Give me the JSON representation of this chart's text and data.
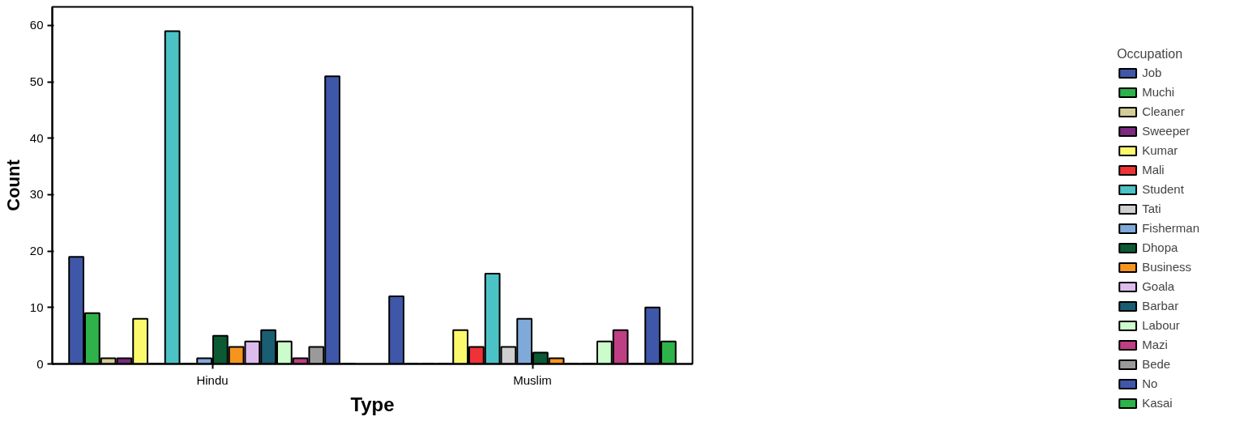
{
  "chart_data": {
    "type": "bar",
    "xlabel": "Type",
    "ylabel": "Count",
    "legend_title": "Occupation",
    "categories": [
      "Hindu",
      "Muslim"
    ],
    "ylim": [
      0,
      63.3
    ],
    "yticks": [
      0,
      10,
      20,
      30,
      40,
      50,
      60
    ],
    "grid": false,
    "legend": "right",
    "series": [
      {
        "name": "Job",
        "color": "#3f57a8",
        "values": [
          19,
          12
        ]
      },
      {
        "name": "Muchi",
        "color": "#2db34a",
        "values": [
          9,
          0
        ]
      },
      {
        "name": "Cleaner",
        "color": "#d4cc96",
        "values": [
          1,
          0
        ]
      },
      {
        "name": "Sweeper",
        "color": "#7b2a7e",
        "values": [
          1,
          0
        ]
      },
      {
        "name": "Kumar",
        "color": "#fcf96d",
        "values": [
          8,
          6
        ]
      },
      {
        "name": "Mali",
        "color": "#ee3236",
        "values": [
          0,
          3
        ]
      },
      {
        "name": "Student",
        "color": "#4bc3c6",
        "values": [
          59,
          16
        ]
      },
      {
        "name": "Tati",
        "color": "#cfcfcf",
        "values": [
          0,
          3
        ]
      },
      {
        "name": "Fisherman",
        "color": "#7fa9d9",
        "values": [
          1,
          8
        ]
      },
      {
        "name": "Dhopa",
        "color": "#0b5a34",
        "values": [
          5,
          2
        ]
      },
      {
        "name": "Business",
        "color": "#f7941d",
        "values": [
          3,
          1
        ]
      },
      {
        "name": "Goala",
        "color": "#dcbcec",
        "values": [
          4,
          0
        ]
      },
      {
        "name": "Barbar",
        "color": "#1a5e73",
        "values": [
          6,
          0
        ]
      },
      {
        "name": "Labour",
        "color": "#ccfccc",
        "values": [
          4,
          4
        ]
      },
      {
        "name": "Mazi",
        "color": "#be3f84",
        "values": [
          1,
          6
        ]
      },
      {
        "name": "Bede",
        "color": "#9a9a9a",
        "values": [
          3,
          0
        ]
      },
      {
        "name": "No",
        "color": "#3f57a8",
        "values": [
          51,
          10
        ]
      },
      {
        "name": "Kasai",
        "color": "#2db34a",
        "values": [
          0,
          4
        ]
      }
    ]
  }
}
